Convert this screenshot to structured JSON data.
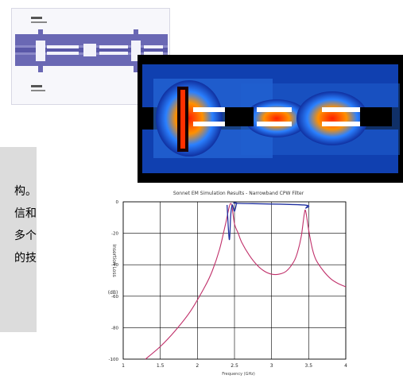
{
  "text_panel": {
    "lines": [
      "构。",
      "信和",
      "多个",
      "的技"
    ]
  },
  "layout_panel": {
    "label_top": "",
    "label_bottom": ""
  },
  "plot": {
    "title": "Sonnet EM Simulation Results - Narrowband CPW Filter",
    "xlabel": "Frequency (GHz)",
    "ylabel_vertical": "Insertion Loss",
    "ylabel_unit": "(dB)",
    "colors": {
      "s21": "#c0306a",
      "s11": "#2030a0",
      "grid": "#000000"
    }
  },
  "chart_data": {
    "type": "line",
    "title": "Sonnet EM Simulation Results - Narrowband CPW Filter",
    "xlabel": "Frequency (GHz)",
    "ylabel": "Insertion Loss (dB)",
    "xlim": [
      1,
      4
    ],
    "ylim": [
      -100,
      0
    ],
    "x_ticks": [
      1,
      1.5,
      2,
      2.5,
      3,
      3.5,
      4
    ],
    "x_tick_labels": [
      "1",
      "1.5",
      "2",
      "2.5",
      "3",
      "3.5",
      "4"
    ],
    "y_ticks": [
      0,
      -20,
      -40,
      -60,
      -80,
      -100
    ],
    "y_tick_labels": [
      "0",
      "-20",
      "-40",
      "-60",
      "-80",
      "-100"
    ],
    "grid": true,
    "series": [
      {
        "x": [
          1.3,
          1.5,
          1.7,
          1.9,
          2.1,
          2.2,
          2.3,
          2.38,
          2.45,
          2.5,
          2.55,
          2.6,
          2.7,
          2.8,
          2.9,
          3.0,
          3.1,
          3.2,
          3.3,
          3.35,
          3.4,
          3.44,
          3.46,
          3.5,
          3.55,
          3.6,
          3.7,
          3.8,
          3.9,
          4.0
        ],
        "y": [
          -100,
          -92,
          -82,
          -70,
          -54,
          -44,
          -30,
          -14,
          -1,
          -14,
          -20,
          -26,
          -34,
          -40,
          -44,
          -46,
          -46,
          -44,
          -38,
          -32,
          -22,
          -8,
          -6,
          -18,
          -30,
          -37,
          -44,
          -49,
          -52,
          -54
        ]
      },
      {
        "x": [
          2.4,
          2.43,
          2.45,
          2.47,
          2.5,
          2.53,
          2.56,
          3.43,
          3.46,
          3.49
        ],
        "y": [
          -2,
          -24,
          -8,
          -2,
          -6,
          -1,
          -1,
          -2,
          -4,
          -2
        ]
      }
    ]
  }
}
